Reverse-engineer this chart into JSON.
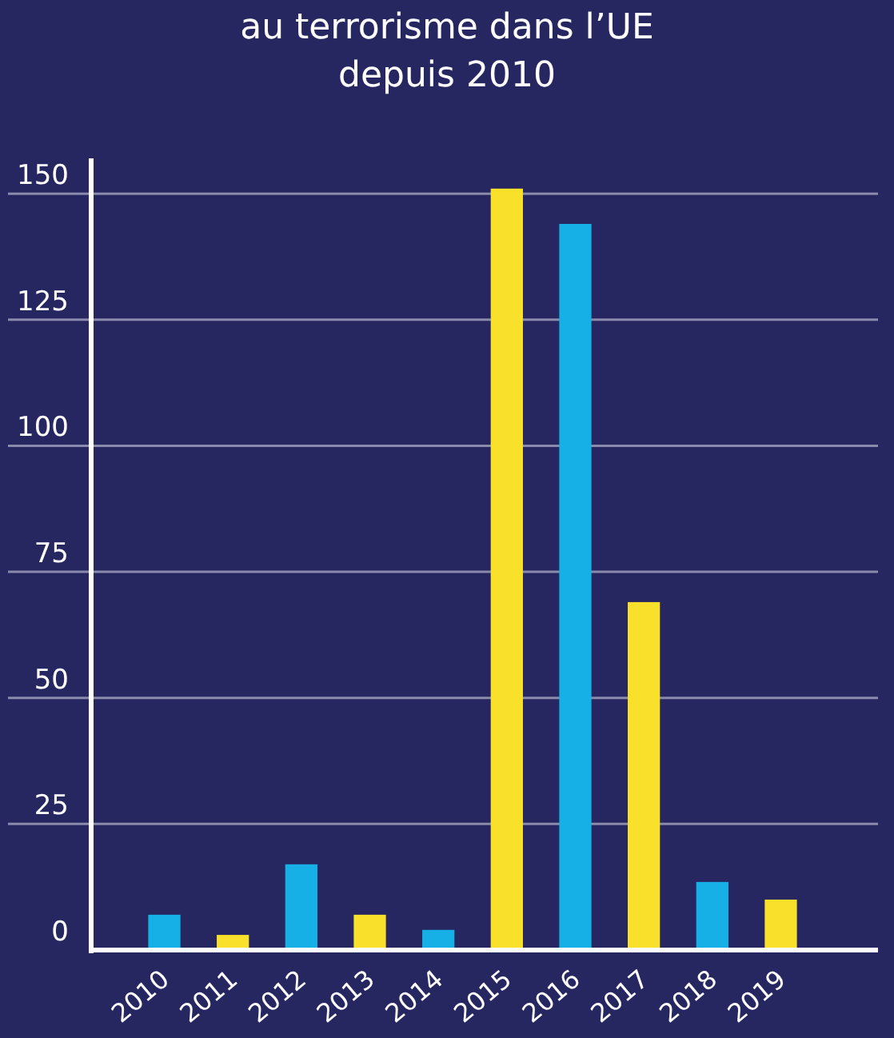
{
  "chart_data": {
    "type": "bar",
    "title": "au terrorisme dans l’UE\ndepuis 2010",
    "categories": [
      "2010",
      "2011",
      "2012",
      "2013",
      "2014",
      "2015",
      "2016",
      "2017",
      "2018",
      "2019"
    ],
    "values": [
      7,
      3,
      17,
      7,
      4,
      151,
      144,
      69,
      13.5,
      10
    ],
    "colors": [
      "#16b0e6",
      "#f9e02a",
      "#16b0e6",
      "#f9e02a",
      "#16b0e6",
      "#f9e02a",
      "#16b0e6",
      "#f9e02a",
      "#16b0e6",
      "#f9e02a"
    ],
    "ylim": [
      0,
      157
    ],
    "yticks": [
      0,
      25,
      50,
      75,
      100,
      125,
      150
    ],
    "grid": "y"
  }
}
